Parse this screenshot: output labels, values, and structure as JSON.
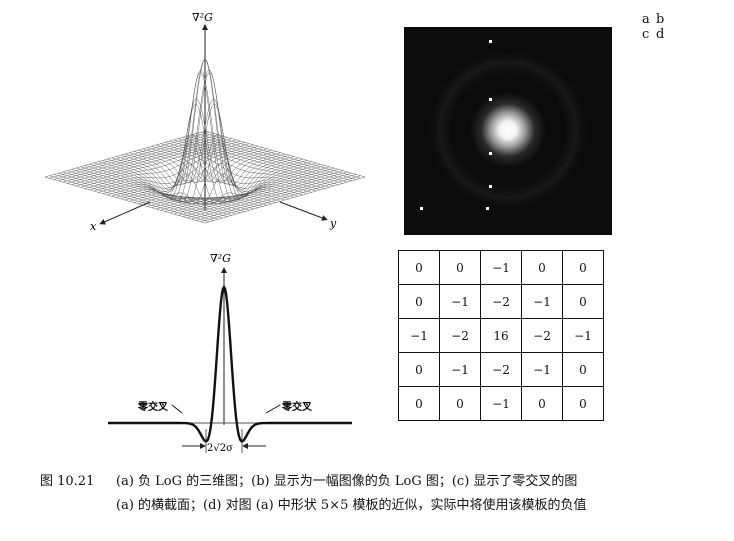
{
  "panel_tags": {
    "a": "a",
    "b": "b",
    "c": "c",
    "d": "d"
  },
  "panel_a": {
    "z_label": "∇²G",
    "x_label": "x",
    "y_label": "y"
  },
  "panel_c": {
    "y_label": "∇²G",
    "zero_crossing_left": "零交叉",
    "zero_crossing_right": "零交叉",
    "width_label": "2√2σ"
  },
  "kernel": {
    "rows": [
      [
        "0",
        "0",
        "−1",
        "0",
        "0"
      ],
      [
        "0",
        "−1",
        "−2",
        "−1",
        "0"
      ],
      [
        "−1",
        "−2",
        "16",
        "−2",
        "−1"
      ],
      [
        "0",
        "−1",
        "−2",
        "−1",
        "0"
      ],
      [
        "0",
        "0",
        "−1",
        "0",
        "0"
      ]
    ]
  },
  "caption": {
    "number": "图 10.21",
    "line1": "(a) 负 LoG 的三维图；(b) 显示为一幅图像的负 LoG 图；(c) 显示了零交叉的图",
    "line2": "(a) 的横截面；(d) 对图 (a) 中形状 5×5 模板的近似，实际中将使用该模板的负值"
  }
}
